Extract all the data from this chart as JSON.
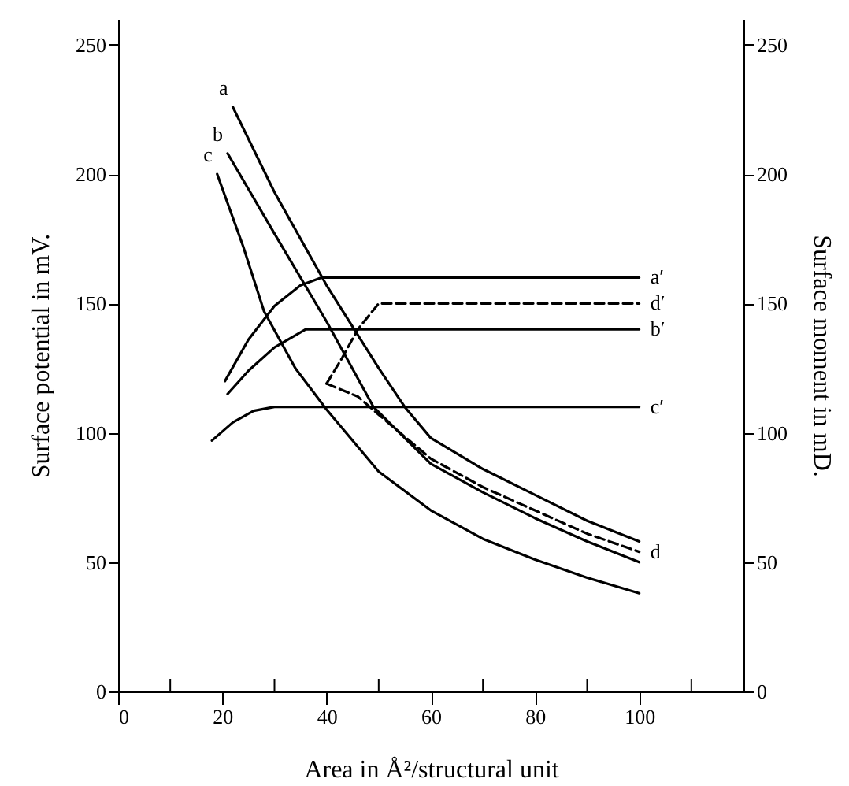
{
  "chart_data": {
    "type": "line",
    "xlabel": "Area in Å²/structural unit",
    "ylabel": "Surface potential in mV.",
    "y2label": "Surface moment in mD.",
    "xlim": [
      0,
      120
    ],
    "xticks": [
      0,
      {
        "value": 10,
        "label": null
      },
      20,
      {
        "value": 30,
        "label": null
      },
      40,
      {
        "value": 50,
        "label": null
      },
      60,
      {
        "value": 70,
        "label": null
      },
      80,
      {
        "value": 90,
        "label": null
      },
      100,
      {
        "value": 110,
        "label": null
      }
    ],
    "ylim": [
      0,
      260
    ],
    "yticks": [
      0,
      50,
      100,
      150,
      200,
      250
    ],
    "y2lim": [
      0,
      260
    ],
    "y2ticks": [
      0,
      50,
      100,
      150,
      200,
      250
    ],
    "grid": false,
    "marker": "none",
    "series": [
      {
        "color": "#000000",
        "line_style": "solid",
        "x": [
          22,
          30,
          40,
          50,
          55,
          60,
          70,
          80,
          90,
          100
        ],
        "values": [
          226,
          193,
          157,
          125,
          110,
          98,
          86,
          76,
          66,
          58
        ]
      },
      {
        "color": "#000000",
        "line_style": "solid",
        "x": [
          21,
          30,
          40,
          49,
          60,
          70,
          80,
          90,
          100
        ],
        "values": [
          208,
          177,
          143,
          110,
          88,
          77,
          67,
          58,
          50
        ]
      },
      {
        "color": "#000000",
        "line_style": "solid",
        "x": [
          19,
          24,
          28,
          34,
          40,
          50,
          60,
          70,
          80,
          90,
          100
        ],
        "values": [
          200,
          172,
          147,
          125,
          109,
          85,
          70,
          59,
          51,
          44,
          38
        ]
      },
      {
        "color": "#000000",
        "line_style": "dashed",
        "x": [
          40,
          46,
          50,
          60,
          70,
          80,
          90,
          100
        ],
        "values": [
          119,
          114,
          107,
          90,
          79,
          70,
          61,
          54
        ]
      },
      {
        "color": "#000000",
        "line_style": "solid",
        "axis": "y2",
        "x": [
          20.5,
          25,
          30,
          35,
          39,
          45,
          100
        ],
        "values": [
          120,
          136,
          149,
          157,
          160,
          160,
          160
        ]
      },
      {
        "color": "#000000",
        "line_style": "solid",
        "axis": "y2",
        "x": [
          21,
          25,
          30,
          36,
          100
        ],
        "values": [
          115,
          124,
          133,
          140,
          140
        ]
      },
      {
        "color": "#000000",
        "line_style": "solid",
        "axis": "y2",
        "x": [
          18,
          22,
          26,
          30,
          100
        ],
        "values": [
          97,
          104,
          108.5,
          110,
          110
        ]
      },
      {
        "color": "#000000",
        "line_style": "dashed",
        "axis": "y2",
        "x": [
          40,
          43,
          46,
          50,
          100
        ],
        "values": [
          119,
          129,
          140,
          150,
          150
        ]
      }
    ],
    "annotations": [
      {
        "text": "a",
        "x": 22,
        "y": 226
      },
      {
        "text": "b",
        "x": 21,
        "y": 208
      },
      {
        "text": "c",
        "x": 19,
        "y": 200
      },
      {
        "text": "a′",
        "x": 100,
        "y": 160
      },
      {
        "text": "d′",
        "x": 100,
        "y": 150
      },
      {
        "text": "b′",
        "x": 100,
        "y": 140
      },
      {
        "text": "c′",
        "x": 100,
        "y": 110
      },
      {
        "text": "d",
        "x": 100,
        "y": 54
      }
    ]
  }
}
